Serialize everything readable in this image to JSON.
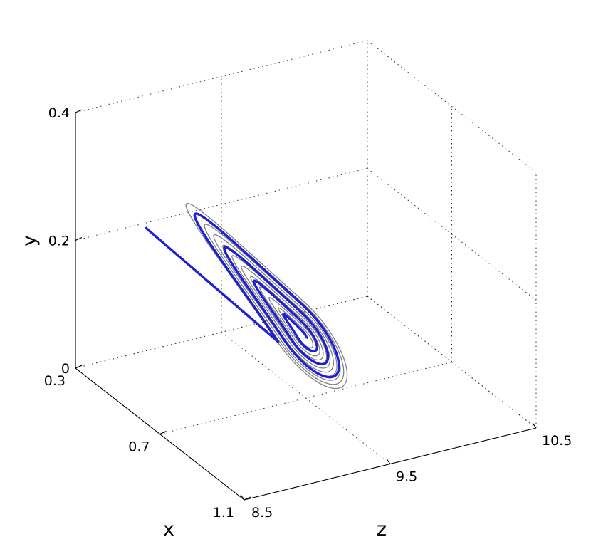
{
  "chart_data": {
    "type": "line",
    "projection": "3d",
    "xlabel": "x",
    "ylabel": "y",
    "zlabel": "z",
    "xlim": [
      0.3,
      1.1
    ],
    "ylim": [
      0,
      0.4
    ],
    "zlim": [
      8.5,
      10.5
    ],
    "xticks": [
      "0.3",
      "0.7",
      "1.1"
    ],
    "yticks": [
      "0",
      "0.2",
      "0.4"
    ],
    "zticks": [
      "8.5",
      "9.5",
      "10.5"
    ],
    "grid": true,
    "series": [
      {
        "color": "#808080",
        "style": "thin-spiral-family",
        "description_values": {
          "center": {
            "x": 0.62,
            "y": 0.07,
            "z": 9.6
          },
          "curves": 11
        }
      },
      {
        "color": "#1f1fd6",
        "style": "thick-spiral-with-spike",
        "description_values": {
          "center": {
            "x": 0.62,
            "y": 0.07,
            "z": 9.6
          },
          "peak": {
            "y": 0.2
          }
        }
      }
    ]
  }
}
